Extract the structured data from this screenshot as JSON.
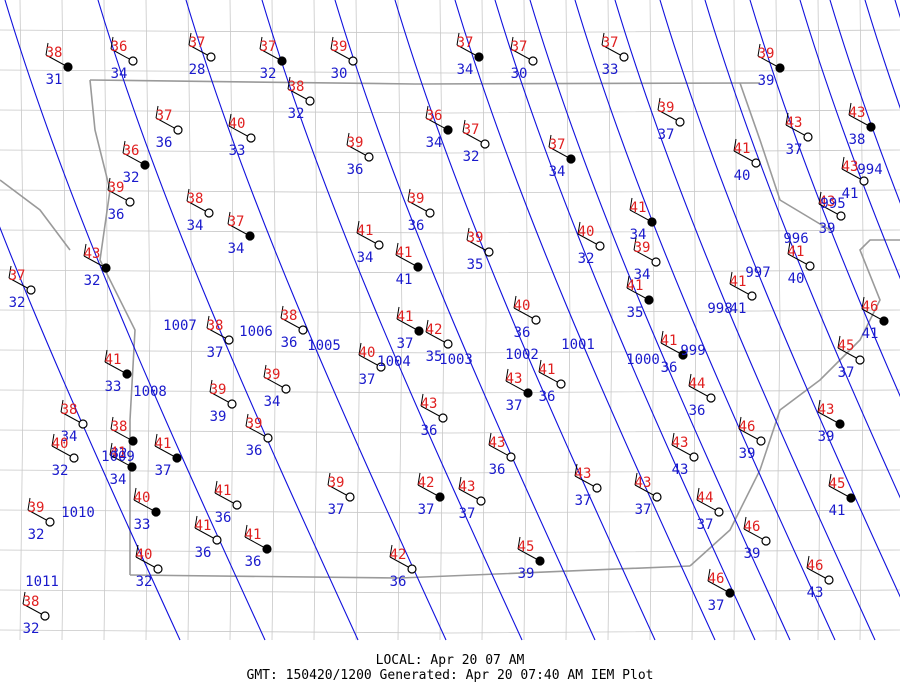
{
  "stations": [
    {
      "temp": 38,
      "dew": 31
    },
    {
      "temp": 36,
      "dew": 34
    },
    {
      "temp": 37,
      "dew": 28
    },
    {
      "temp": 37,
      "dew": 32
    },
    {
      "temp": 39,
      "dew": 30
    },
    {
      "temp": 38,
      "dew": 32
    },
    {
      "temp": 37,
      "dew": 34
    },
    {
      "temp": 37,
      "dew": 30
    },
    {
      "temp": 37,
      "dew": 33
    },
    {
      "temp": 39,
      "dew": 39
    },
    {
      "temp": 37,
      "dew": 36
    },
    {
      "temp": 40,
      "dew": 33
    },
    {
      "temp": 36,
      "dew": 34
    },
    {
      "temp": 37,
      "dew": 32
    },
    {
      "temp": 39,
      "dew": 36
    },
    {
      "temp": 37,
      "dew": 34
    },
    {
      "temp": 39,
      "dew": 37
    },
    {
      "temp": 43,
      "dew": 37
    },
    {
      "temp": 43,
      "dew": 38
    },
    {
      "temp": 41,
      "dew": 40
    },
    {
      "temp": 43,
      "dew": 41
    },
    {
      "temp": 36,
      "dew": 32
    },
    {
      "temp": 39,
      "dew": 36
    },
    {
      "temp": 38,
      "dew": 34
    },
    {
      "temp": 37,
      "dew": 34
    },
    {
      "temp": 39,
      "dew": 36
    },
    {
      "temp": 41,
      "dew": 34
    },
    {
      "temp": 41,
      "dew": 41
    },
    {
      "temp": 39,
      "dew": 35
    },
    {
      "temp": 40,
      "dew": 32
    },
    {
      "temp": 41,
      "dew": 34
    },
    {
      "temp": 39,
      "dew": 34
    },
    {
      "temp": 43,
      "dew": 39
    },
    {
      "temp": 43,
      "dew": 32
    },
    {
      "temp": 37,
      "dew": 32
    },
    {
      "temp": 41,
      "dew": 40
    },
    {
      "temp": 41,
      "dew": 35
    },
    {
      "temp": 41,
      "dew": 41
    },
    {
      "temp": 40,
      "dew": 36
    },
    {
      "temp": 46,
      "dew": 41
    },
    {
      "temp": 38,
      "dew": 37
    },
    {
      "temp": 38,
      "dew": 36
    },
    {
      "temp": 41,
      "dew": 37
    },
    {
      "temp": 42,
      "dew": 35
    },
    {
      "temp": 40,
      "dew": 37
    },
    {
      "temp": 41,
      "dew": 33
    },
    {
      "temp": 39,
      "dew": 34
    },
    {
      "temp": 39,
      "dew": 39
    },
    {
      "temp": 43,
      "dew": 37
    },
    {
      "temp": 41,
      "dew": 36
    },
    {
      "temp": 43,
      "dew": 36
    },
    {
      "temp": 41,
      "dew": 36
    },
    {
      "temp": 44,
      "dew": 36
    },
    {
      "temp": 45,
      "dew": 37
    },
    {
      "temp": 43,
      "dew": 39
    },
    {
      "temp": 46,
      "dew": 39
    },
    {
      "temp": 38,
      "dew": 34
    },
    {
      "temp": 38,
      "dew": 32
    },
    {
      "temp": 40,
      "dew": 32
    },
    {
      "temp": 39,
      "dew": 36
    },
    {
      "temp": 41,
      "dew": 37
    },
    {
      "temp": 43,
      "dew": 36
    },
    {
      "temp": 43,
      "dew": 43
    },
    {
      "temp": 41,
      "dew": 34
    },
    {
      "temp": 43,
      "dew": 37
    },
    {
      "temp": 43,
      "dew": 37
    },
    {
      "temp": 40,
      "dew": 33
    },
    {
      "temp": 41,
      "dew": 36
    },
    {
      "temp": 39,
      "dew": 37
    },
    {
      "temp": 42,
      "dew": 37
    },
    {
      "temp": 43,
      "dew": 37
    },
    {
      "temp": 44,
      "dew": 37
    },
    {
      "temp": 45,
      "dew": 41
    },
    {
      "temp": 39,
      "dew": 32
    },
    {
      "temp": 41,
      "dew": 36
    },
    {
      "temp": 41,
      "dew": 36
    },
    {
      "temp": 40,
      "dew": 32
    },
    {
      "temp": 42,
      "dew": 36
    },
    {
      "temp": 45,
      "dew": 39
    },
    {
      "temp": 46,
      "dew": 39
    },
    {
      "temp": 46,
      "dew": 43
    },
    {
      "temp": 46,
      "dew": 37
    },
    {
      "temp": 38,
      "dew": 32
    }
  ],
  "isobars": [
    "1011",
    "1010",
    "1009",
    "1008",
    "1007",
    "1006",
    "1005",
    "1004",
    "1003",
    "1002",
    "1001",
    "1000",
    "999",
    "998",
    "997",
    "996",
    "995",
    "994"
  ],
  "footer": {
    "local": "LOCAL: Apr 20 07 AM",
    "gmt": "GMT: 150420/1200 Generated: Apr 20 07:40 AM IEM Plot"
  }
}
